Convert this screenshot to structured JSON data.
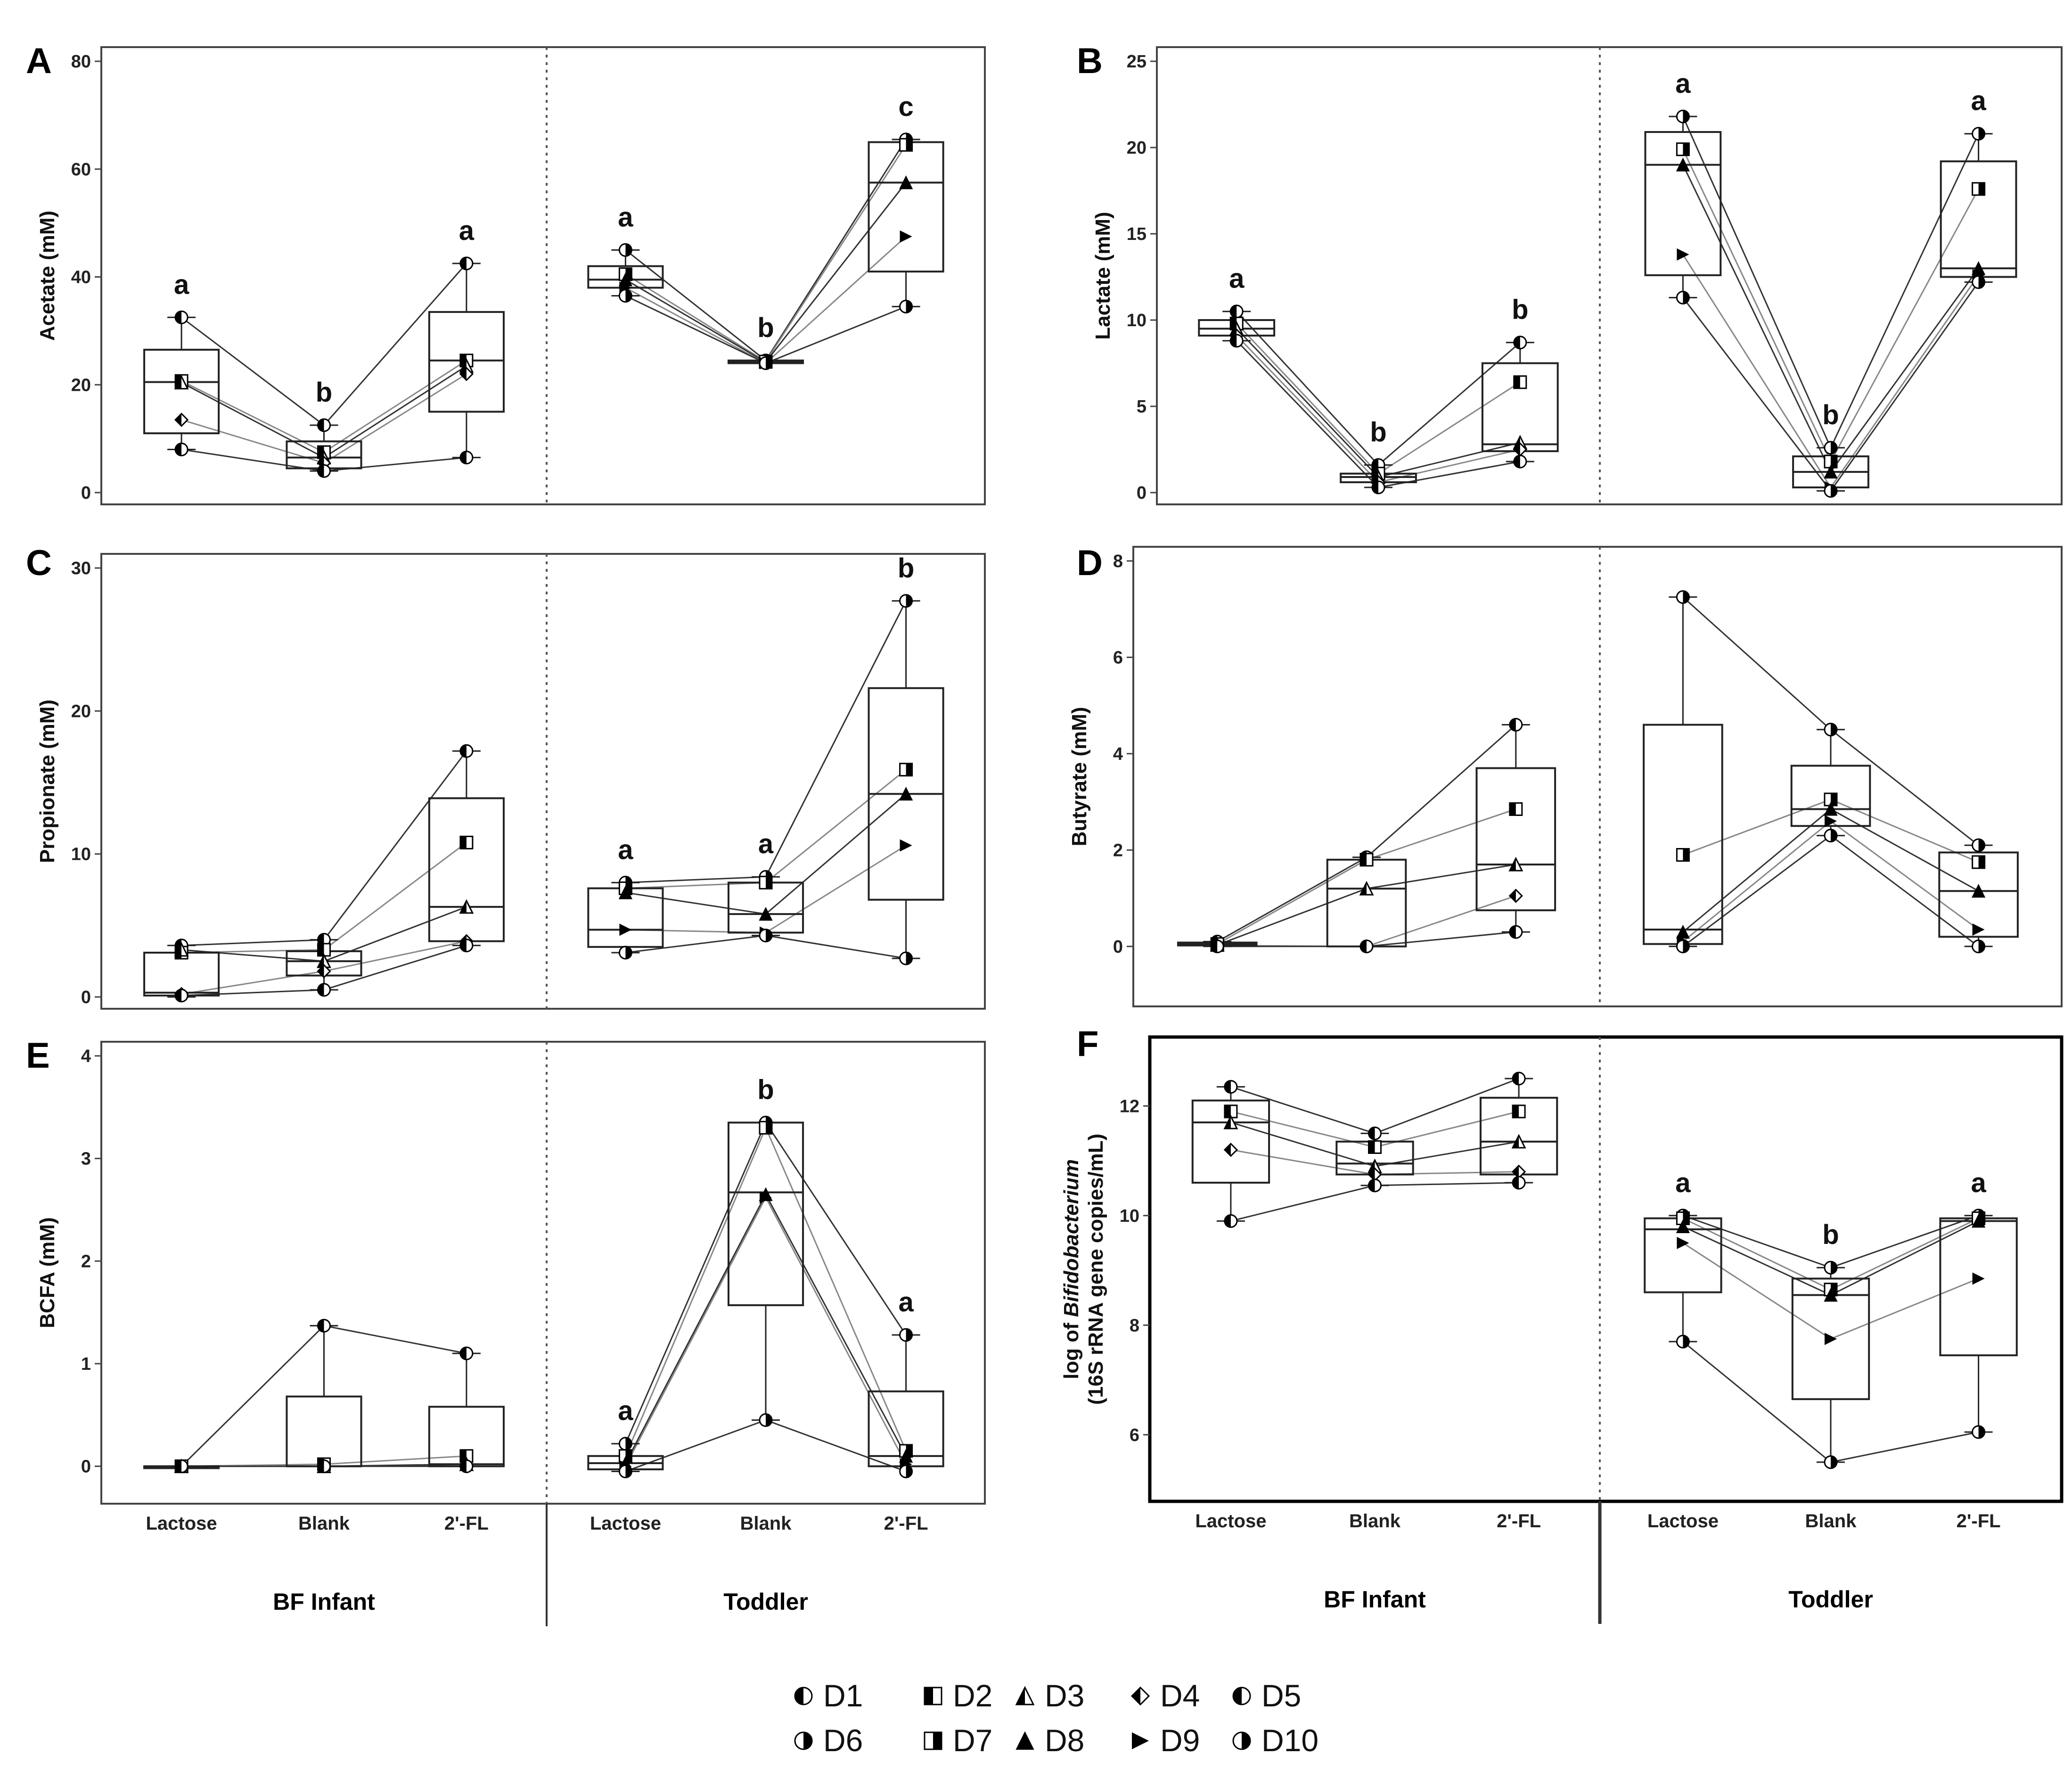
{
  "chart_data": [
    {
      "panel": "A",
      "type": "box",
      "ylabel": "Acetate (mM)",
      "ylim": [
        0,
        80
      ],
      "yticks": [
        0,
        20,
        40,
        60,
        80
      ],
      "groups": [
        {
          "name": "BF Infant",
          "boxes": [
            {
              "cat": "Lactose",
              "stats": [
                8,
                11,
                20.5,
                26.5,
                32.5
              ],
              "points": [
                32.5,
                20.7,
                20.4,
                13.5,
                8.0
              ],
              "sig": "a"
            },
            {
              "cat": "Blank",
              "stats": [
                4,
                4.5,
                6.5,
                9.5,
                12.5
              ],
              "points": [
                12.5,
                7.5,
                6.5,
                5.5,
                4.0
              ],
              "sig": "b"
            },
            {
              "cat": "2'-FL",
              "stats": [
                6.5,
                15,
                24.5,
                33.5,
                42.5
              ],
              "points": [
                42.5,
                24.5,
                23.5,
                22.0,
                6.5
              ],
              "sig": "a"
            }
          ]
        },
        {
          "name": "Toddler",
          "boxes": [
            {
              "cat": "Lactose",
              "stats": [
                36.5,
                38,
                39.5,
                42,
                45
              ],
              "points": [
                45.0,
                40.5,
                39.5,
                38.0,
                36.5
              ],
              "sig": "a"
            },
            {
              "cat": "Blank",
              "stats": [
                24,
                24,
                24.2,
                24.5,
                24.5
              ],
              "points": [
                24.5,
                24.3,
                24.2,
                24.0,
                24.0
              ],
              "sig": "b"
            },
            {
              "cat": "2'-FL",
              "stats": [
                34.5,
                41,
                57.5,
                65,
                65.5
              ],
              "points": [
                65.5,
                64.5,
                57.5,
                47.5,
                34.5
              ],
              "sig": "c"
            }
          ]
        }
      ]
    },
    {
      "panel": "B",
      "type": "box",
      "ylabel": "Lactate (mM)",
      "ylim": [
        0,
        25
      ],
      "yticks": [
        0,
        5,
        10,
        15,
        20,
        25
      ],
      "groups": [
        {
          "name": "BF Infant",
          "boxes": [
            {
              "cat": "Lactose",
              "stats": [
                8.8,
                9.1,
                9.5,
                10,
                10.5
              ],
              "points": [
                10.5,
                9.8,
                9.5,
                9.1,
                8.8
              ],
              "sig": "a"
            },
            {
              "cat": "Blank",
              "stats": [
                0.3,
                0.6,
                0.9,
                1.1,
                1.6
              ],
              "points": [
                1.6,
                1.1,
                0.9,
                0.6,
                0.3
              ],
              "sig": "b"
            },
            {
              "cat": "2'-FL",
              "stats": [
                1.8,
                2.4,
                2.8,
                7.5,
                8.7
              ],
              "points": [
                8.7,
                6.4,
                2.9,
                2.5,
                1.8
              ],
              "sig": "b"
            }
          ]
        },
        {
          "name": "Toddler",
          "boxes": [
            {
              "cat": "Lactose",
              "stats": [
                11.3,
                12.6,
                19,
                20.9,
                21.8
              ],
              "points": [
                21.8,
                19.9,
                19.0,
                13.8,
                11.3
              ],
              "sig": "a"
            },
            {
              "cat": "Blank",
              "stats": [
                0.1,
                0.3,
                1.2,
                2.1,
                2.6
              ],
              "points": [
                2.6,
                1.8,
                1.2,
                0.3,
                0.1
              ],
              "sig": "b"
            },
            {
              "cat": "2'-FL",
              "stats": [
                12.2,
                12.5,
                13,
                19.2,
                20.8
              ],
              "points": [
                20.8,
                17.6,
                13.0,
                12.6,
                12.2
              ],
              "sig": "a"
            }
          ]
        }
      ]
    },
    {
      "panel": "C",
      "type": "box",
      "ylabel": "Propionate (mM)",
      "ylim": [
        0,
        30
      ],
      "yticks": [
        0,
        10,
        20,
        30
      ],
      "groups": [
        {
          "name": "BF Infant",
          "boxes": [
            {
              "cat": "Lactose",
              "stats": [
                0,
                0.1,
                0.3,
                3.1,
                3.6
              ],
              "points": [
                3.6,
                3.1,
                3.3,
                0.2,
                0.1
              ],
              "sig": ""
            },
            {
              "cat": "Blank",
              "stats": [
                0.5,
                1.5,
                2.5,
                3.2,
                4.0
              ],
              "points": [
                4.0,
                3.3,
                2.5,
                1.8,
                0.5
              ],
              "sig": ""
            },
            {
              "cat": "2'-FL",
              "stats": [
                3.6,
                3.9,
                6.3,
                13.9,
                17.2
              ],
              "points": [
                17.2,
                10.8,
                6.3,
                3.9,
                3.6
              ],
              "sig": ""
            }
          ]
        },
        {
          "name": "Toddler",
          "boxes": [
            {
              "cat": "Lactose",
              "stats": [
                3.1,
                3.5,
                4.7,
                7.6,
                8.0
              ],
              "points": [
                8.0,
                7.6,
                7.3,
                4.7,
                3.1
              ],
              "sig": "a"
            },
            {
              "cat": "Blank",
              "stats": [
                4.3,
                4.5,
                5.8,
                8.0,
                8.4
              ],
              "points": [
                8.4,
                8.0,
                5.8,
                4.5,
                4.3
              ],
              "sig": "a"
            },
            {
              "cat": "2'-FL",
              "stats": [
                2.7,
                6.8,
                14.2,
                21.6,
                27.7
              ],
              "points": [
                27.7,
                15.9,
                14.2,
                10.6,
                2.7
              ],
              "sig": "b"
            }
          ]
        }
      ]
    },
    {
      "panel": "D",
      "type": "box",
      "ylabel": "Butyrate (mM)",
      "ylim": [
        -1,
        8
      ],
      "yticks": [
        0,
        2,
        4,
        6,
        8
      ],
      "groups": [
        {
          "name": "BF Infant",
          "boxes": [
            {
              "cat": "Lactose",
              "stats": [
                0,
                0.02,
                0.05,
                0.08,
                0.1
              ],
              "points": [
                0.1,
                0.05,
                0.03,
                0.02,
                0.0
              ],
              "sig": ""
            },
            {
              "cat": "Blank",
              "stats": [
                0,
                0,
                1.2,
                1.8,
                1.85
              ],
              "points": [
                1.85,
                1.8,
                1.2,
                0.0,
                0.0
              ],
              "sig": ""
            },
            {
              "cat": "2'-FL",
              "stats": [
                0.3,
                0.75,
                1.7,
                3.7,
                4.6
              ],
              "points": [
                4.6,
                2.85,
                1.7,
                1.05,
                0.3
              ],
              "sig": ""
            }
          ]
        },
        {
          "name": "Toddler",
          "boxes": [
            {
              "cat": "Lactose",
              "stats": [
                0,
                0.05,
                0.35,
                4.6,
                7.25
              ],
              "points": [
                7.25,
                1.9,
                0.3,
                0.1,
                0.0
              ],
              "sig": ""
            },
            {
              "cat": "Blank",
              "stats": [
                2.3,
                2.5,
                2.85,
                3.75,
                4.5
              ],
              "points": [
                4.5,
                3.05,
                2.85,
                2.6,
                2.3
              ],
              "sig": ""
            },
            {
              "cat": "2'-FL",
              "stats": [
                0,
                0.2,
                1.15,
                1.95,
                2.1
              ],
              "points": [
                2.1,
                1.75,
                1.15,
                0.35,
                0.0
              ],
              "sig": ""
            }
          ]
        }
      ]
    },
    {
      "panel": "E",
      "type": "box",
      "ylabel": "BCFA (mM)",
      "ylim": [
        -0.25,
        4
      ],
      "yticks": [
        0,
        1,
        2,
        3,
        4
      ],
      "groups": [
        {
          "name": "BF Infant",
          "boxes": [
            {
              "cat": "Lactose",
              "stats": [
                0,
                0,
                0,
                0,
                0
              ],
              "points": [
                0,
                0,
                0,
                0,
                0
              ],
              "sig": ""
            },
            {
              "cat": "Blank",
              "stats": [
                0,
                0,
                0,
                0.68,
                1.37
              ],
              "points": [
                1.37,
                0.02,
                0.0,
                0.0,
                0.0
              ],
              "sig": ""
            },
            {
              "cat": "2'-FL",
              "stats": [
                0,
                0,
                0.02,
                0.58,
                1.1
              ],
              "points": [
                1.1,
                0.1,
                0.02,
                0.0,
                0.0
              ],
              "sig": ""
            }
          ]
        },
        {
          "name": "Toddler",
          "boxes": [
            {
              "cat": "Lactose",
              "stats": [
                -0.05,
                -0.03,
                0.03,
                0.1,
                0.22
              ],
              "points": [
                0.22,
                0.1,
                0.03,
                0.0,
                -0.05
              ],
              "sig": "a"
            },
            {
              "cat": "Blank",
              "stats": [
                0.45,
                1.57,
                2.67,
                3.35,
                3.35
              ],
              "points": [
                3.35,
                3.3,
                2.65,
                2.62,
                0.45
              ],
              "sig": "b"
            },
            {
              "cat": "2'-FL",
              "stats": [
                0,
                0,
                0.1,
                0.73,
                1.28
              ],
              "points": [
                1.28,
                0.15,
                0.1,
                0.02,
                -0.05
              ],
              "sig": "a"
            }
          ]
        }
      ]
    },
    {
      "panel": "F",
      "type": "box",
      "ylabel_pre": "log of ",
      "ylabel_italic": "Bifidobacterium",
      "ylabel2": "(16S rRNA gene copies/mL)",
      "ylim": [
        5,
        13
      ],
      "yticks": [
        6,
        8,
        10,
        12
      ],
      "groups": [
        {
          "name": "BF Infant",
          "boxes": [
            {
              "cat": "Lactose",
              "stats": [
                9.9,
                10.6,
                11.7,
                12.1,
                12.35
              ],
              "points": [
                12.35,
                11.9,
                11.7,
                11.2,
                9.9
              ],
              "sig": ""
            },
            {
              "cat": "Blank",
              "stats": [
                10.55,
                10.75,
                10.95,
                11.35,
                11.5
              ],
              "points": [
                11.5,
                11.25,
                10.9,
                10.75,
                10.55
              ],
              "sig": ""
            },
            {
              "cat": "2'-FL",
              "stats": [
                10.6,
                10.75,
                11.35,
                12.15,
                12.5
              ],
              "points": [
                12.5,
                11.9,
                11.35,
                10.8,
                10.6
              ],
              "sig": ""
            }
          ]
        },
        {
          "name": "Toddler",
          "boxes": [
            {
              "cat": "Lactose",
              "stats": [
                7.7,
                8.6,
                9.75,
                9.95,
                10.0
              ],
              "points": [
                10.0,
                9.95,
                9.8,
                9.5,
                7.7
              ],
              "sig": "a"
            },
            {
              "cat": "Blank",
              "stats": [
                5.5,
                6.65,
                8.55,
                8.85,
                9.05
              ],
              "points": [
                9.05,
                8.65,
                8.55,
                7.75,
                5.5
              ],
              "sig": "b"
            },
            {
              "cat": "2'-FL",
              "stats": [
                6.05,
                7.45,
                9.9,
                9.95,
                10.0
              ],
              "points": [
                10.0,
                9.95,
                9.9,
                8.85,
                6.05
              ],
              "sig": "a"
            }
          ]
        }
      ]
    }
  ],
  "axes": {
    "categories": [
      "Lactose",
      "Blank",
      "2'-FL"
    ],
    "groups": [
      "BF Infant",
      "Toddler"
    ]
  },
  "legend": {
    "items": [
      {
        "label": "D1",
        "marker": "half-left"
      },
      {
        "label": "D2",
        "marker": "square-half"
      },
      {
        "label": "D3",
        "marker": "triangle"
      },
      {
        "label": "D4",
        "marker": "diamond"
      },
      {
        "label": "D5",
        "marker": "half-left-wide"
      },
      {
        "label": "D6",
        "marker": "half-right"
      },
      {
        "label": "D7",
        "marker": "square-half-right"
      },
      {
        "label": "D8",
        "marker": "triangle-solid"
      },
      {
        "label": "D9",
        "marker": "arrow-right"
      },
      {
        "label": "D10",
        "marker": "half-right-wide"
      }
    ]
  }
}
